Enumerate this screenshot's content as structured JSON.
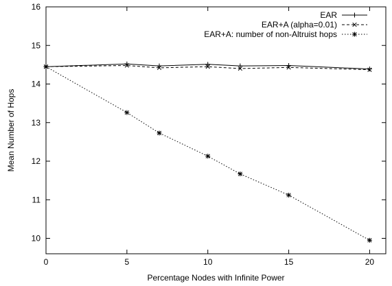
{
  "chart_data": {
    "type": "line",
    "xlabel": "Percentage Nodes with Infinite Power",
    "ylabel": "Mean Number of Hops",
    "xlim": [
      0,
      21
    ],
    "ylim": [
      9.6,
      16
    ],
    "x_ticks": [
      0,
      5,
      10,
      15,
      20
    ],
    "y_ticks": [
      10,
      11,
      12,
      13,
      14,
      15,
      16
    ],
    "grid": false,
    "legend_position": "top-right",
    "series": [
      {
        "name": "EAR",
        "marker": "plus",
        "line_style": "solid",
        "x": [
          0,
          5,
          7,
          10,
          12,
          15,
          20
        ],
        "y": [
          14.45,
          14.52,
          14.47,
          14.51,
          14.47,
          14.48,
          14.39
        ]
      },
      {
        "name": "EAR+A (alpha=0.01)",
        "marker": "cross",
        "line_style": "dashed",
        "x": [
          0,
          5,
          7,
          10,
          12,
          15,
          20
        ],
        "y": [
          14.45,
          14.48,
          14.42,
          14.45,
          14.4,
          14.43,
          14.37
        ]
      },
      {
        "name": "EAR+A: number of non-Altruist hops",
        "marker": "star",
        "line_style": "dotted",
        "x": [
          0,
          5,
          7,
          10,
          12,
          15,
          20
        ],
        "y": [
          14.45,
          13.26,
          12.73,
          12.13,
          11.67,
          11.12,
          9.95
        ]
      }
    ]
  }
}
